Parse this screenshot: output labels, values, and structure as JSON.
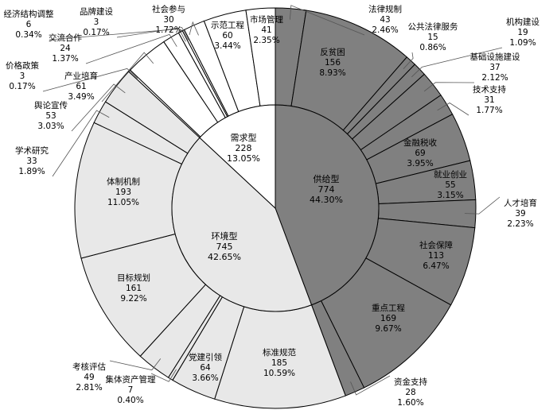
{
  "chart_data": {
    "type": "pie",
    "subtype": "sunburst (two-level donut)",
    "colors": {
      "供给型": "#808080",
      "环境型": "#e8e8e8",
      "需求型": "#ffffff",
      "stroke": "#000000"
    },
    "inner": [
      {
        "name": "供给型",
        "value": 774,
        "pct": "44.30%"
      },
      {
        "name": "环境型",
        "value": 745,
        "pct": "42.65%"
      },
      {
        "name": "需求型",
        "value": 228,
        "pct": "13.05%"
      }
    ],
    "outer": [
      {
        "name": "法律规制",
        "value": 43,
        "pct": "2.46%",
        "group": "供给型"
      },
      {
        "name": "反贫困",
        "value": 156,
        "pct": "8.93%",
        "group": "供给型"
      },
      {
        "name": "公共法律服务",
        "value": 15,
        "pct": "0.86%",
        "group": "供给型"
      },
      {
        "name": "机构建设",
        "value": 19,
        "pct": "1.09%",
        "group": "供给型"
      },
      {
        "name": "基础设施建设",
        "value": 37,
        "pct": "2.12%",
        "group": "供给型"
      },
      {
        "name": "技术支持",
        "value": 31,
        "pct": "1.77%",
        "group": "供给型"
      },
      {
        "name": "金融税收",
        "value": 69,
        "pct": "3.95%",
        "group": "供给型"
      },
      {
        "name": "就业创业",
        "value": 55,
        "pct": "3.15%",
        "group": "供给型"
      },
      {
        "name": "人才培育",
        "value": 39,
        "pct": "2.23%",
        "group": "供给型"
      },
      {
        "name": "社会保障",
        "value": 113,
        "pct": "6.47%",
        "group": "供给型"
      },
      {
        "name": "重点工程",
        "value": 169,
        "pct": "9.67%",
        "group": "供给型"
      },
      {
        "name": "资金支持",
        "value": 28,
        "pct": "1.60%",
        "group": "供给型"
      },
      {
        "name": "标准规范",
        "value": 185,
        "pct": "10.59%",
        "group": "环境型"
      },
      {
        "name": "党建引领",
        "value": 64,
        "pct": "3.66%",
        "group": "环境型"
      },
      {
        "name": "集体资产管理",
        "value": 7,
        "pct": "0.40%",
        "group": "环境型"
      },
      {
        "name": "考核评估",
        "value": 49,
        "pct": "2.81%",
        "group": "环境型"
      },
      {
        "name": "目标规划",
        "value": 161,
        "pct": "9.22%",
        "group": "环境型"
      },
      {
        "name": "体制机制",
        "value": 193,
        "pct": "11.05%",
        "group": "环境型"
      },
      {
        "name": "学术研究",
        "value": 33,
        "pct": "1.89%",
        "group": "环境型"
      },
      {
        "name": "舆论宣传",
        "value": 53,
        "pct": "3.03%",
        "group": "环境型"
      },
      {
        "name": "价格政策",
        "value": 3,
        "pct": "0.17%",
        "group": "需求型"
      },
      {
        "name": "产业培育",
        "value": 61,
        "pct": "3.49%",
        "group": "需求型"
      },
      {
        "name": "交流合作",
        "value": 24,
        "pct": "1.37%",
        "group": "需求型"
      },
      {
        "name": "经济结构调整",
        "value": 6,
        "pct": "0.34%",
        "group": "需求型"
      },
      {
        "name": "品牌建设",
        "value": 3,
        "pct": "0.17%",
        "group": "需求型"
      },
      {
        "name": "社会参与",
        "value": 30,
        "pct": "1.72%",
        "group": "需求型"
      },
      {
        "name": "示范工程",
        "value": 60,
        "pct": "3.44%",
        "group": "需求型"
      },
      {
        "name": "市场管理",
        "value": 41,
        "pct": "2.35%",
        "group": "需求型"
      }
    ]
  }
}
